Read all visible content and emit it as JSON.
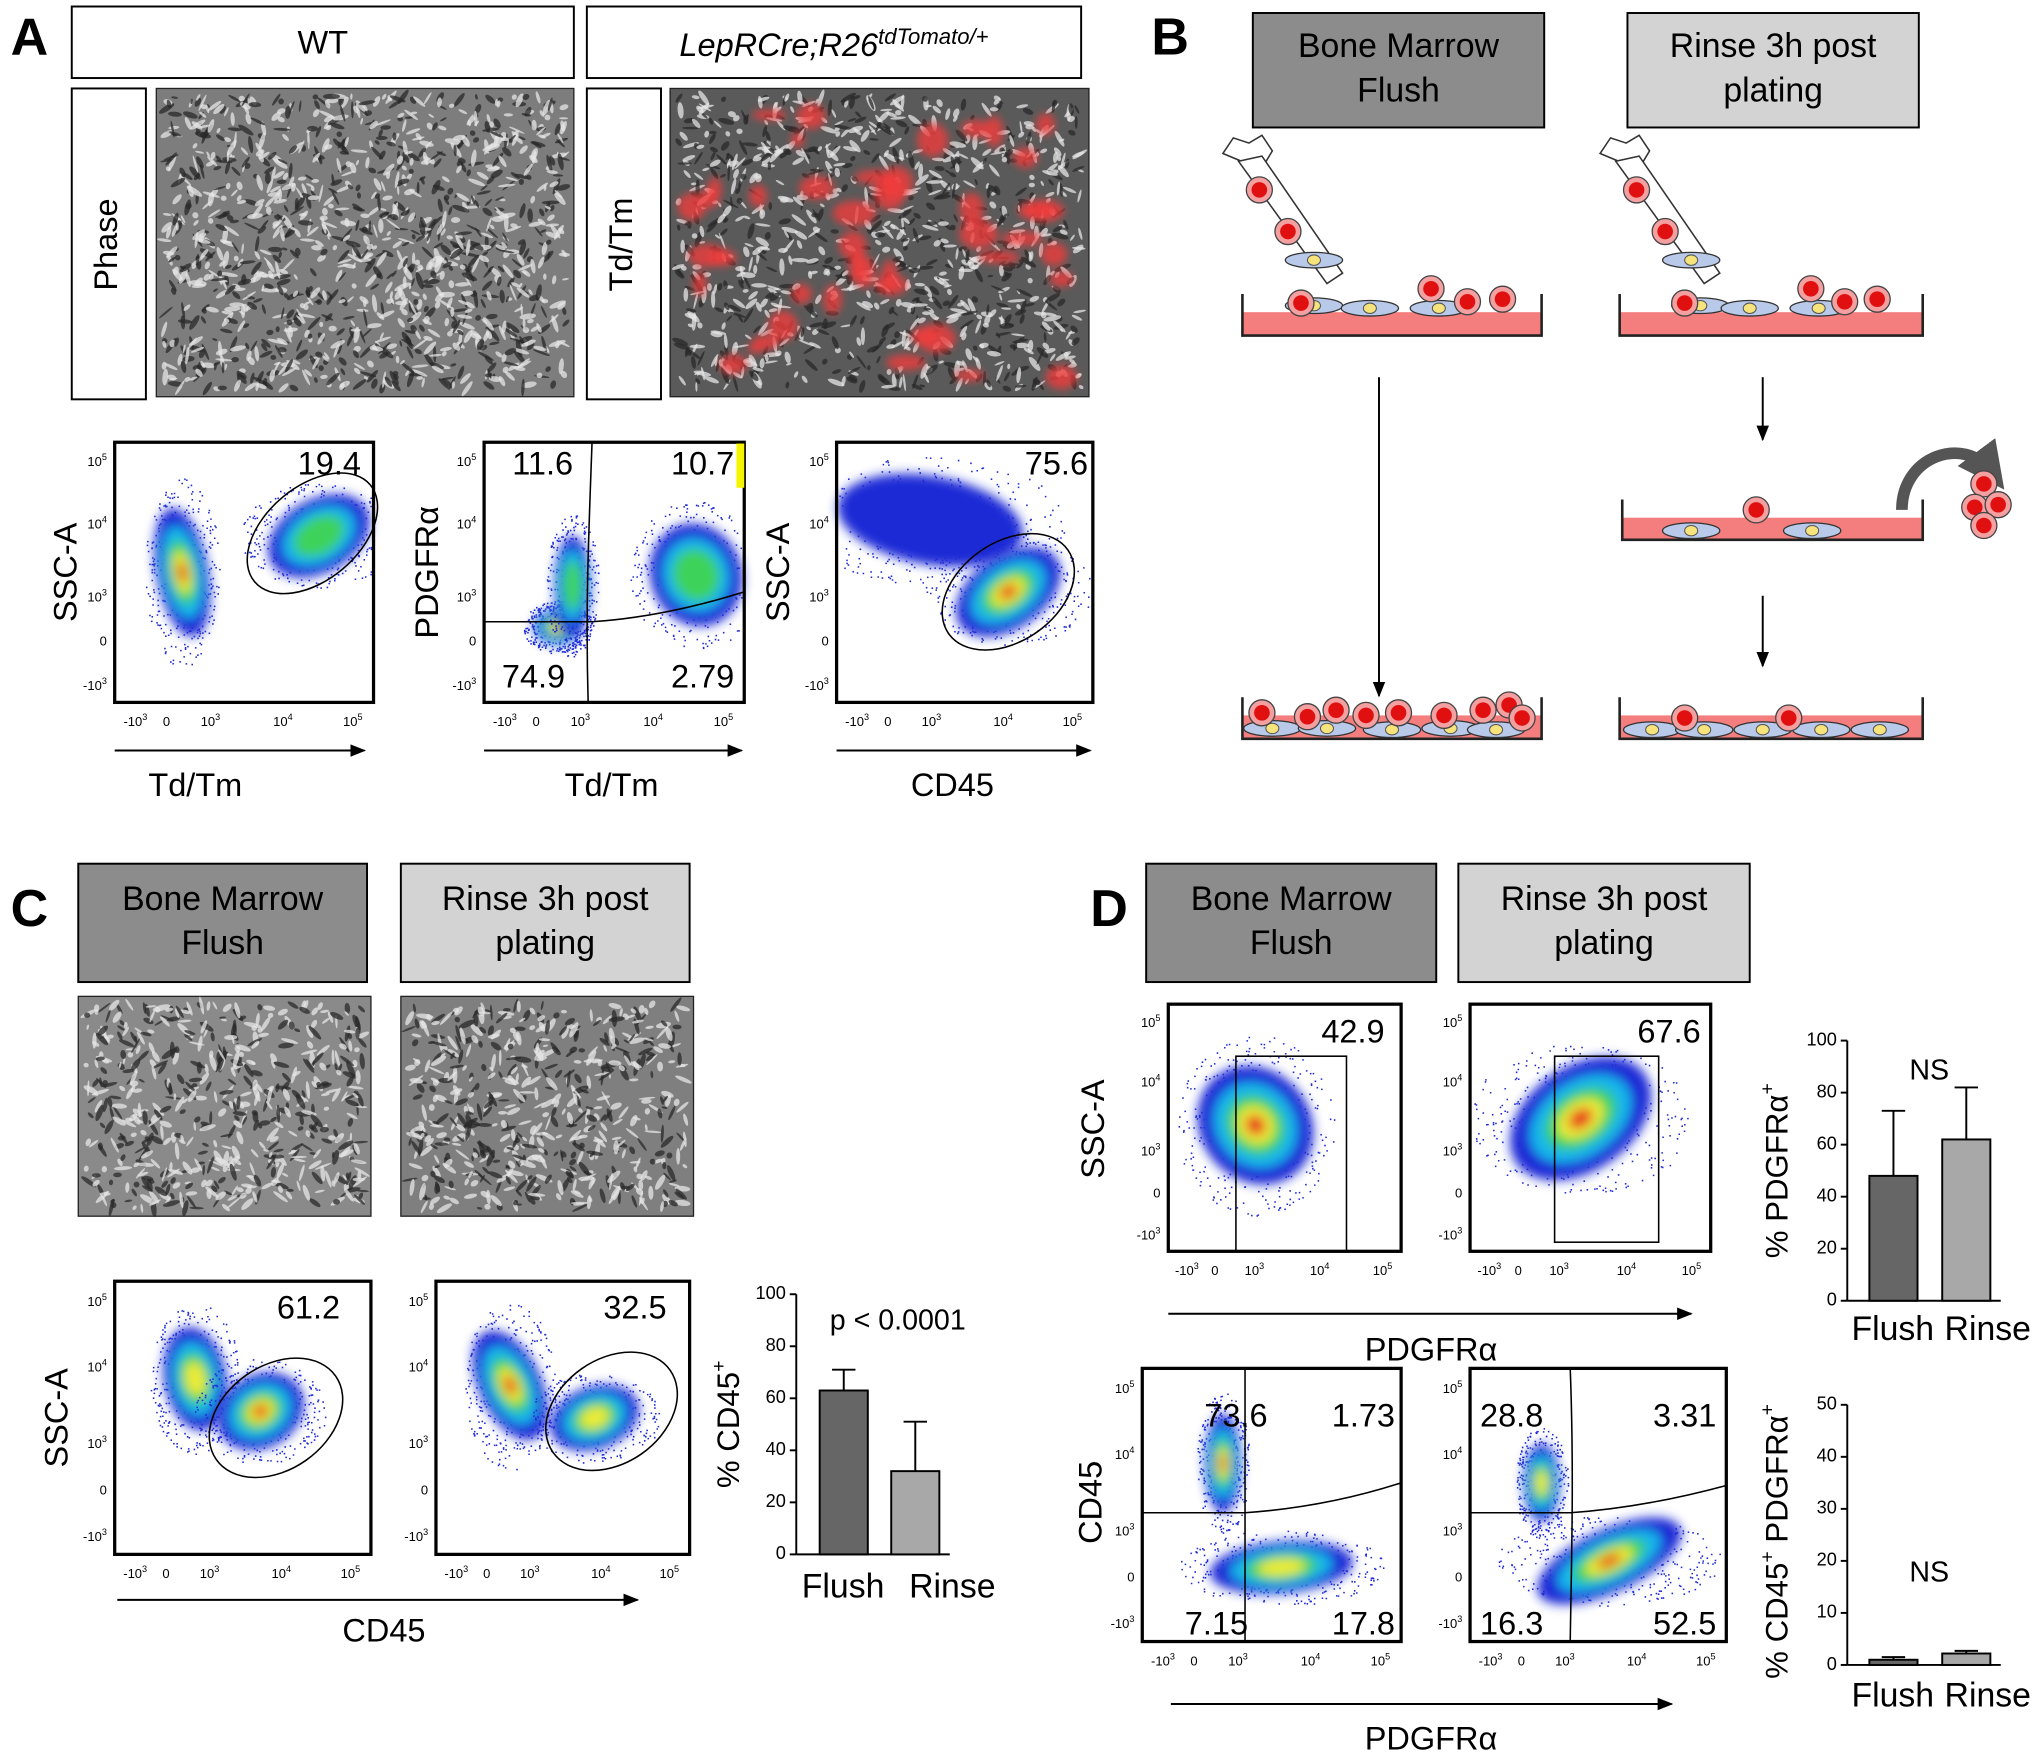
{
  "panel_labels": [
    "A",
    "B",
    "C",
    "D"
  ],
  "panel_a": {
    "headers": {
      "wt": "WT",
      "cre_base": "LepRCre;R26",
      "cre_sup": "tdTomato/+"
    },
    "row_labels": [
      "Phase",
      "Td/Tm"
    ]
  },
  "box_labels": {
    "flush": [
      "Bone Marrow",
      "Flush"
    ],
    "rinse": [
      "Rinse 3h post",
      "plating"
    ]
  },
  "flow_ticks": {
    "y": [
      {
        "base": "10",
        "sup": "5"
      },
      {
        "base": "10",
        "sup": "4"
      },
      {
        "base": "10",
        "sup": "3"
      },
      {
        "base": "0"
      },
      {
        "base": "-10",
        "sup": "3"
      }
    ],
    "x": [
      {
        "base": "-10",
        "sup": "3"
      },
      {
        "base": "0"
      },
      {
        "base": "10",
        "sup": "3"
      },
      {
        "base": "10",
        "sup": "4"
      },
      {
        "base": "10",
        "sup": "5"
      }
    ]
  },
  "flow_plots": [
    {
      "y_label": "SSC-A",
      "x_label": "Td/Tm",
      "gates": [
        19.4
      ]
    },
    {
      "y_label": "PDGFRα",
      "x_label": "Td/Tm",
      "gates": [
        11.6,
        10.7,
        74.9,
        2.79
      ]
    },
    {
      "y_label": "SSC-A",
      "x_label": "CD45",
      "gates": [
        75.6
      ]
    },
    {
      "y_label": "SSC-A",
      "x_label": "CD45",
      "gates": [
        61.2
      ]
    },
    {
      "gates": [
        32.5
      ]
    },
    {
      "y_label": "SSC-A",
      "x_label": "PDGFRα",
      "gates": [
        42.9
      ]
    },
    {
      "gates": [
        67.6
      ]
    },
    {
      "y_label": "CD45",
      "x_label": "PDGFRα",
      "gates": [
        73.6,
        1.73,
        7.15,
        17.8
      ]
    },
    {
      "gates": [
        28.8,
        3.31,
        16.3,
        52.5
      ]
    }
  ],
  "chart_data": [
    {
      "type": "bar",
      "ylabel": [
        {
          "text": "% CD45"
        },
        {
          "sup": "+"
        }
      ],
      "annotation": "p < 0.0001",
      "categories": [
        "Flush",
        "Rinse"
      ],
      "values": [
        63,
        32
      ],
      "errors": [
        8,
        19
      ],
      "colors": [
        "#666666",
        "#a8a8a8"
      ],
      "ylim": [
        0,
        100
      ],
      "yticks": [
        0,
        20,
        40,
        60,
        80,
        100
      ]
    },
    {
      "type": "bar",
      "ylabel": [
        {
          "text": "% PDGFRα"
        },
        {
          "sup": "+"
        }
      ],
      "annotation": "NS",
      "categories": [
        "Flush",
        "Rinse"
      ],
      "values": [
        48,
        62
      ],
      "errors": [
        25,
        20
      ],
      "colors": [
        "#666666",
        "#a8a8a8"
      ],
      "ylim": [
        0,
        100
      ],
      "yticks": [
        0,
        20,
        40,
        60,
        80,
        100
      ]
    },
    {
      "type": "bar",
      "ylabel": [
        {
          "text": "% CD45"
        },
        {
          "sup": "+"
        },
        {
          "text": " PDGFRα"
        },
        {
          "sup": "+"
        }
      ],
      "annotation": "NS",
      "categories": [
        "Flush",
        "Rinse"
      ],
      "values": [
        1,
        2.2
      ],
      "errors": [
        0.5,
        0.5
      ],
      "colors": [
        "#666666",
        "#a8a8a8"
      ],
      "ylim": [
        0,
        50
      ],
      "yticks": [
        0,
        10,
        20,
        30,
        40,
        50
      ]
    }
  ]
}
